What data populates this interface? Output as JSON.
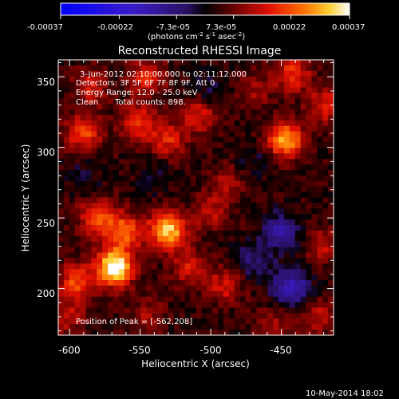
{
  "chart_data": {
    "type": "heatmap",
    "title": "Reconstructed RHESSI Image",
    "xlabel": "Heliocentric X (arcsec)",
    "ylabel": "Heliocentric Y (arcsec)",
    "xlim": [
      -608,
      -413
    ],
    "ylim": [
      167,
      362
    ],
    "x_ticks": [
      -600,
      -550,
      -500,
      -450
    ],
    "y_ticks": [
      200,
      250,
      300,
      350
    ],
    "colorbar": {
      "ticks": [
        "-0.00037",
        "-0.00022",
        "-7.3e-05",
        "7.3e-05",
        "0.00022",
        "0.00037"
      ],
      "tick_values": [
        -0.00037,
        -0.00022,
        -7.3e-05,
        7.3e-05,
        0.00022,
        0.00037
      ],
      "range": [
        -0.00037,
        0.00037
      ],
      "units_prefix": "(photons cm",
      "units_exp1": "-2",
      "units_mid": " s",
      "units_exp2": "-1",
      "units_mid2": " asec",
      "units_exp3": "-2",
      "units_suffix": ")"
    },
    "annotations": {
      "time": "3-Jun-2012 02:10:00.000 to 02:11:12.000",
      "detectors": "Detectors: 3F 5F 6F 7F 8F 9F, Att 0",
      "energy": "Energy Range: 12.0 - 25.0 keV",
      "clean": "Clean",
      "counts": "Total counts: 898.",
      "peak": "Position of Peak = [-562,208]"
    },
    "sources": [
      {
        "x": -568,
        "y": 215,
        "peak": 0.00037
      },
      {
        "x": -530,
        "y": 242,
        "peak": 0.0003
      },
      {
        "x": -560,
        "y": 240,
        "peak": 0.0002
      },
      {
        "x": -580,
        "y": 250,
        "peak": 0.0002
      },
      {
        "x": -590,
        "y": 310,
        "peak": 0.00018
      },
      {
        "x": -552,
        "y": 318,
        "peak": 0.00016
      },
      {
        "x": -545,
        "y": 350,
        "peak": 0.00014
      },
      {
        "x": -585,
        "y": 343,
        "peak": 0.00012
      },
      {
        "x": -508,
        "y": 323,
        "peak": 0.00013
      },
      {
        "x": -530,
        "y": 305,
        "peak": 0.00014
      },
      {
        "x": -595,
        "y": 205,
        "peak": 0.00018
      },
      {
        "x": -515,
        "y": 215,
        "peak": 0.00013
      },
      {
        "x": -490,
        "y": 202,
        "peak": 0.00012
      },
      {
        "x": -500,
        "y": 255,
        "peak": 0.0001
      },
      {
        "x": -487,
        "y": 275,
        "peak": 9e-05
      },
      {
        "x": -447,
        "y": 305,
        "peak": 0.00026
      },
      {
        "x": -442,
        "y": 352,
        "peak": 0.00016
      },
      {
        "x": -418,
        "y": 330,
        "peak": 0.00014
      },
      {
        "x": -420,
        "y": 230,
        "peak": 0.0001
      },
      {
        "x": -425,
        "y": 180,
        "peak": 0.00011
      },
      {
        "x": -455,
        "y": 175,
        "peak": 9e-05
      },
      {
        "x": -600,
        "y": 180,
        "peak": 0.0001
      },
      {
        "x": -545,
        "y": 182,
        "peak": 8e-05
      },
      {
        "x": -470,
        "y": 340,
        "peak": 8e-05
      }
    ],
    "negative_sources": [
      {
        "x": -450,
        "y": 240,
        "peak": -0.00016
      },
      {
        "x": -443,
        "y": 200,
        "peak": -0.0002
      },
      {
        "x": -470,
        "y": 220,
        "peak": -0.0001
      },
      {
        "x": -500,
        "y": 340,
        "peak": -6e-05
      },
      {
        "x": -470,
        "y": 290,
        "peak": -5e-05
      },
      {
        "x": -590,
        "y": 280,
        "peak": -4e-05
      },
      {
        "x": -540,
        "y": 280,
        "peak": -4e-05
      }
    ]
  },
  "footer": {
    "timestamp": "10-May-2014 18:02"
  }
}
